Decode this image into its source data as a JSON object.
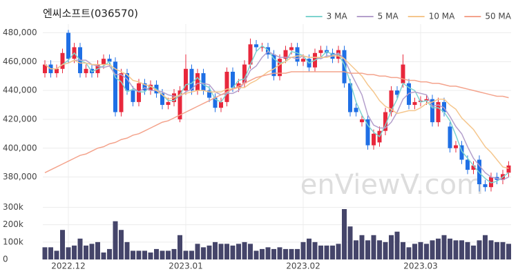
{
  "chart_data": [
    {
      "type": "candlestick",
      "title": "엔씨소프트(036570)",
      "watermark": "enViewV.com",
      "open": [
        452000,
        458000,
        452000,
        455000,
        480000,
        462000,
        470000,
        452000,
        455000,
        452000,
        458000,
        462000,
        460000,
        425000,
        452000,
        440000,
        432000,
        445000,
        440000,
        444000,
        438000,
        430000,
        432000,
        420000,
        440000,
        455000,
        440000,
        452000,
        440000,
        435000,
        428000,
        432000,
        453000,
        442000,
        445000,
        458000,
        472000,
        470000,
        470000,
        465000,
        450000,
        462000,
        468000,
        470000,
        460000,
        462000,
        456000,
        466000,
        468000,
        466000,
        462000,
        468000,
        445000,
        428000,
        418000,
        420000,
        402000,
        404000,
        412000,
        425000,
        440000,
        445000,
        445000,
        430000,
        432000,
        433000,
        434000,
        418000,
        432000,
        415000,
        400000,
        402000,
        392000,
        385000,
        392000,
        375000,
        373000,
        380000,
        378000,
        383000
      ],
      "high": [
        461000,
        461000,
        458000,
        469000,
        482000,
        473000,
        473000,
        458000,
        458000,
        461000,
        465000,
        465000,
        463000,
        455000,
        455000,
        443000,
        448000,
        448000,
        447000,
        447000,
        441000,
        435000,
        441000,
        443000,
        465000,
        458000,
        455000,
        455000,
        443000,
        438000,
        435000,
        456000,
        456000,
        448000,
        461000,
        476000,
        475000,
        473000,
        473000,
        468000,
        465000,
        471000,
        473000,
        473000,
        465000,
        465000,
        469000,
        471000,
        471000,
        469000,
        471000,
        471000,
        448000,
        431000,
        423000,
        423000,
        413000,
        415000,
        428000,
        443000,
        443000,
        465000,
        448000,
        435000,
        436000,
        437000,
        437000,
        435000,
        435000,
        418000,
        405000,
        405000,
        395000,
        391000,
        395000,
        378000,
        383000,
        383000,
        385000,
        391000
      ],
      "low": [
        449000,
        449000,
        449000,
        452000,
        459000,
        459000,
        449000,
        449000,
        449000,
        449000,
        455000,
        457000,
        422000,
        422000,
        437000,
        429000,
        429000,
        437000,
        437000,
        435000,
        427000,
        427000,
        429000,
        418000,
        437000,
        437000,
        437000,
        437000,
        432000,
        425000,
        425000,
        429000,
        439000,
        439000,
        442000,
        455000,
        467000,
        467000,
        462000,
        447000,
        447000,
        459000,
        465000,
        457000,
        457000,
        453000,
        453000,
        463000,
        463000,
        459000,
        459000,
        442000,
        422000,
        422000,
        415000,
        399000,
        399000,
        401000,
        409000,
        422000,
        434000,
        442000,
        427000,
        427000,
        429000,
        430000,
        415000,
        415000,
        422000,
        397000,
        397000,
        389000,
        382000,
        382000,
        370000,
        370000,
        370000,
        375000,
        375000,
        380000
      ],
      "close": [
        458000,
        452000,
        455000,
        466000,
        462000,
        470000,
        452000,
        455000,
        452000,
        458000,
        462000,
        460000,
        425000,
        452000,
        440000,
        432000,
        445000,
        440000,
        444000,
        438000,
        430000,
        432000,
        438000,
        440000,
        455000,
        440000,
        452000,
        440000,
        435000,
        428000,
        432000,
        453000,
        442000,
        445000,
        458000,
        472000,
        470000,
        470000,
        465000,
        450000,
        462000,
        468000,
        470000,
        460000,
        462000,
        456000,
        466000,
        468000,
        466000,
        462000,
        468000,
        445000,
        425000,
        425000,
        420000,
        402000,
        410000,
        412000,
        425000,
        440000,
        437000,
        458000,
        430000,
        432000,
        433000,
        434000,
        418000,
        432000,
        425000,
        400000,
        402000,
        392000,
        385000,
        388000,
        375000,
        373000,
        380000,
        378000,
        382000,
        388000
      ],
      "up_color": "#e8283c",
      "down_color": "#1f6fe5",
      "series": [
        {
          "name": "3 MA",
          "color": "#7dd3cf",
          "values": [
            458000,
            455000,
            455000,
            458000,
            461000,
            466000,
            461000,
            459000,
            453000,
            455000,
            457000,
            460000,
            449000,
            446000,
            439000,
            441000,
            439000,
            439000,
            443000,
            441000,
            437000,
            433000,
            433000,
            437000,
            444000,
            445000,
            449000,
            444000,
            442000,
            434000,
            432000,
            438000,
            442000,
            447000,
            448000,
            458000,
            467000,
            471000,
            468000,
            462000,
            459000,
            460000,
            467000,
            466000,
            464000,
            459000,
            461000,
            463000,
            467000,
            465000,
            465000,
            458000,
            446000,
            432000,
            423000,
            416000,
            411000,
            408000,
            416000,
            426000,
            434000,
            445000,
            442000,
            440000,
            432000,
            433000,
            428000,
            428000,
            425000,
            419000,
            409000,
            398000,
            393000,
            388000,
            383000,
            379000,
            376000,
            377000,
            380000,
            383000
          ]
        },
        {
          "name": "5 MA",
          "color": "#b49fcc",
          "values": [
            458000,
            455000,
            455000,
            458000,
            459000,
            461000,
            461000,
            461000,
            458000,
            457000,
            456000,
            457000,
            451000,
            451000,
            448000,
            442000,
            439000,
            442000,
            440000,
            440000,
            439000,
            437000,
            436000,
            436000,
            439000,
            441000,
            445000,
            445000,
            444000,
            439000,
            437000,
            438000,
            438000,
            440000,
            446000,
            454000,
            457000,
            463000,
            467000,
            465000,
            463000,
            463000,
            463000,
            462000,
            464000,
            463000,
            463000,
            462000,
            464000,
            464000,
            466000,
            462000,
            453000,
            445000,
            437000,
            423000,
            416000,
            414000,
            414000,
            418000,
            425000,
            434000,
            438000,
            439000,
            438000,
            437000,
            429000,
            430000,
            428000,
            422000,
            415000,
            410000,
            401000,
            393000,
            388000,
            383000,
            380000,
            379000,
            378000,
            380000
          ]
        },
        {
          "name": "10 MA",
          "color": "#f5c68c",
          "values": [
            458000,
            455000,
            455000,
            458000,
            459000,
            461000,
            459000,
            459000,
            458000,
            458000,
            458000,
            458000,
            455000,
            453000,
            451000,
            447000,
            446000,
            444000,
            443000,
            440000,
            437000,
            434000,
            435000,
            437000,
            438000,
            439000,
            440000,
            440000,
            439000,
            439000,
            439000,
            441000,
            441000,
            442000,
            442000,
            445000,
            447000,
            450000,
            453000,
            455000,
            458000,
            460000,
            463000,
            464000,
            464000,
            463000,
            463000,
            463000,
            463000,
            464000,
            464000,
            462000,
            458000,
            454000,
            450000,
            444000,
            439000,
            433000,
            429000,
            427000,
            424000,
            425000,
            426000,
            426000,
            428000,
            431000,
            432000,
            434000,
            434000,
            430000,
            427000,
            421000,
            417000,
            413000,
            407000,
            401000,
            397000,
            392000,
            387000,
            386000
          ]
        },
        {
          "name": "50 MA",
          "color": "#f4a38c",
          "values": [
            383000,
            385000,
            387000,
            389000,
            391000,
            393000,
            395000,
            396000,
            398000,
            400000,
            401000,
            403000,
            404000,
            406000,
            407000,
            409000,
            410000,
            412000,
            414000,
            416000,
            418000,
            419000,
            421000,
            423000,
            425000,
            427000,
            429000,
            431000,
            433000,
            435000,
            437000,
            439000,
            441000,
            443000,
            445000,
            447000,
            449000,
            450000,
            451000,
            452000,
            452000,
            452000,
            453000,
            453000,
            453000,
            453000,
            453000,
            453000,
            453000,
            453000,
            453000,
            453000,
            452000,
            452000,
            452000,
            451000,
            451000,
            450000,
            450000,
            449000,
            449000,
            448000,
            447000,
            447000,
            446000,
            446000,
            445000,
            445000,
            444000,
            443000,
            443000,
            442000,
            441000,
            440000,
            439000,
            438000,
            437000,
            436000,
            436000,
            435000
          ]
        }
      ],
      "ylim": [
        364000,
        486000
      ],
      "yticks": [
        {
          "value": 380000,
          "label": "380,000"
        },
        {
          "value": 400000,
          "label": "400,000"
        },
        {
          "value": 420000,
          "label": "420,000"
        },
        {
          "value": 440000,
          "label": "440,000"
        },
        {
          "value": 460000,
          "label": "460,000"
        },
        {
          "value": 480000,
          "label": "480,000"
        }
      ],
      "grid": true,
      "legend": "top-right"
    },
    {
      "type": "bar",
      "categories": [
        null,
        null,
        null,
        null,
        "2022.12",
        null,
        null,
        null,
        null,
        null,
        null,
        null,
        null,
        null,
        null,
        null,
        null,
        null,
        null,
        null,
        null,
        null,
        null,
        null,
        "2023.01",
        null,
        null,
        null,
        null,
        null,
        null,
        null,
        null,
        null,
        null,
        null,
        null,
        null,
        null,
        null,
        null,
        null,
        null,
        null,
        "2023.02",
        null,
        null,
        null,
        null,
        null,
        null,
        null,
        null,
        null,
        null,
        null,
        null,
        null,
        null,
        null,
        null,
        null,
        null,
        null,
        "2023.03",
        null,
        null,
        null,
        null,
        null,
        null,
        null,
        null,
        null,
        null,
        null,
        null,
        null,
        null,
        null
      ],
      "values": [
        70000,
        70000,
        50000,
        170000,
        70000,
        80000,
        120000,
        80000,
        90000,
        100000,
        40000,
        60000,
        220000,
        170000,
        100000,
        50000,
        50000,
        50000,
        40000,
        60000,
        50000,
        50000,
        60000,
        140000,
        50000,
        50000,
        90000,
        70000,
        80000,
        100000,
        90000,
        90000,
        80000,
        90000,
        100000,
        90000,
        50000,
        60000,
        70000,
        60000,
        70000,
        60000,
        60000,
        60000,
        100000,
        120000,
        100000,
        80000,
        80000,
        80000,
        90000,
        290000,
        190000,
        110000,
        140000,
        110000,
        140000,
        110000,
        100000,
        140000,
        160000,
        100000,
        70000,
        90000,
        100000,
        90000,
        110000,
        120000,
        140000,
        120000,
        110000,
        110000,
        100000,
        80000,
        110000,
        140000,
        110000,
        100000,
        100000,
        90000
      ],
      "color": "#45456a",
      "ylim": [
        0,
        310000
      ],
      "yticks": [
        0,
        {
          "value": 100000,
          "label": "100k"
        },
        {
          "value": 200000,
          "label": "200k"
        },
        {
          "value": 300000,
          "label": "300k"
        }
      ],
      "grid": true
    }
  ]
}
